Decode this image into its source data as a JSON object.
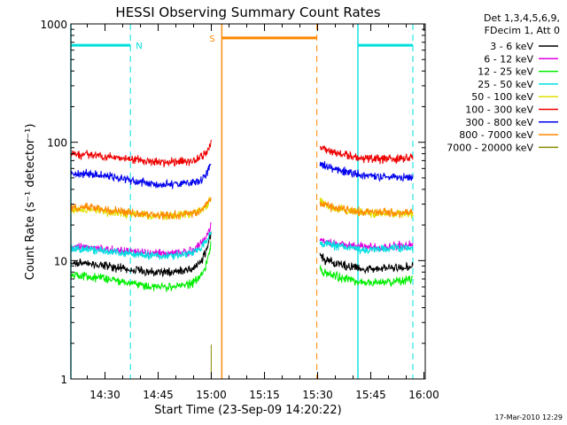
{
  "chart_data": {
    "type": "line",
    "title": "HESSI Observing Summary Count Rates",
    "xlabel": "Start Time (23-Sep-09 14:20:22)",
    "ylabel": "Count Rate (s⁻¹ detector⁻¹)",
    "yscale": "log",
    "ylim": [
      1,
      1000
    ],
    "xlim_minutes": [
      0,
      100
    ],
    "x_ticks": [
      "14:30",
      "14:45",
      "15:00",
      "15:15",
      "15:30",
      "15:45",
      "16:00"
    ],
    "x_tick_minutes": [
      9.63,
      24.63,
      39.63,
      54.63,
      69.63,
      84.63,
      99.63
    ],
    "y_ticks": [
      "1",
      "10",
      "100",
      "1000"
    ],
    "y_tick_values": [
      1,
      10,
      100,
      1000
    ],
    "legend_header": [
      "Det 1,3,4,5,6,9,",
      "FDecim 1, Att 0"
    ],
    "legend_position": "right",
    "timestamp": "17-Mar-2010 12:29",
    "series": [
      {
        "name": "3 - 6 keV",
        "color": "#000000",
        "segments": [
          {
            "x": [
              0,
              5,
              10,
              16,
              22,
              28,
              34,
              37,
              38.5,
              39.6
            ],
            "y": [
              9.5,
              9.5,
              9,
              8.5,
              8,
              8,
              8.5,
              10,
              13,
              17
            ]
          },
          {
            "x": [
              70.3,
              71,
              74,
              78,
              82,
              88,
              94,
              96.5
            ],
            "y": [
              11.5,
              10.5,
              9.5,
              9,
              8.5,
              8.5,
              8.8,
              9
            ]
          }
        ]
      },
      {
        "name": "6 - 12 keV",
        "color": "#e000e0",
        "segments": [
          {
            "x": [
              0,
              5,
              10,
              16,
              22,
              28,
              34,
              37,
              38.5,
              39.6
            ],
            "y": [
              13,
              13,
              12.5,
              12,
              11.5,
              11.5,
              12,
              14,
              17,
              20
            ]
          },
          {
            "x": [
              70.3,
              71,
              74,
              78,
              82,
              88,
              94,
              96.5
            ],
            "y": [
              15.5,
              15,
              14,
              13.5,
              13,
              13,
              13.5,
              14
            ]
          }
        ]
      },
      {
        "name": "12 - 25 keV",
        "color": "#00ee00",
        "segments": [
          {
            "x": [
              0,
              5,
              10,
              16,
              22,
              28,
              34,
              37,
              38.5,
              39.6
            ],
            "y": [
              7.5,
              7.3,
              7,
              6.5,
              6,
              6,
              6.3,
              7.5,
              10,
              14
            ]
          },
          {
            "x": [
              70.3,
              71,
              74,
              78,
              82,
              88,
              94,
              96.5
            ],
            "y": [
              8.5,
              8,
              7.5,
              7,
              6.5,
              6.5,
              6.8,
              7
            ]
          }
        ]
      },
      {
        "name": "25 - 50 keV",
        "color": "#00e0e0",
        "segments": [
          {
            "x": [
              0,
              5,
              10,
              16,
              22,
              28,
              34,
              37,
              38.5,
              39.6
            ],
            "y": [
              12.5,
              12.5,
              12,
              11.5,
              11,
              11,
              11.5,
              13,
              15,
              18
            ]
          },
          {
            "x": [
              70.3,
              71,
              74,
              78,
              82,
              88,
              94,
              96.5
            ],
            "y": [
              14.5,
              14,
              13.5,
              13,
              12.5,
              12.5,
              12.8,
              13
            ]
          }
        ]
      },
      {
        "name": "50 - 100 keV",
        "color": "#e0e000",
        "segments": [
          {
            "x": [
              0,
              5,
              10,
              16,
              22,
              28,
              34,
              37,
              38.5,
              39.6
            ],
            "y": [
              27,
              27,
              26,
              25,
              24,
              24,
              25,
              27,
              30,
              33
            ]
          },
          {
            "x": [
              70.3,
              71,
              74,
              78,
              82,
              88,
              94,
              96.5
            ],
            "y": [
              32,
              31,
              28,
              26.5,
              25.5,
              25,
              25,
              25
            ]
          }
        ]
      },
      {
        "name": "100 - 300 keV",
        "color": "#ee0000",
        "segments": [
          {
            "x": [
              0,
              5,
              10,
              16,
              22,
              28,
              34,
              37,
              38.5,
              39.6
            ],
            "y": [
              78,
              78,
              76,
              72,
              69,
              68,
              70,
              76,
              85,
              100
            ]
          },
          {
            "x": [
              70.3,
              71,
              74,
              78,
              82,
              88,
              94,
              96.5
            ],
            "y": [
              90,
              88,
              82,
              77,
              73,
              72,
              73,
              74
            ]
          }
        ]
      },
      {
        "name": "300 - 800 keV",
        "color": "#0000ee",
        "segments": [
          {
            "x": [
              0,
              5,
              10,
              16,
              22,
              28,
              34,
              37,
              38.5,
              39.6
            ],
            "y": [
              55,
              54,
              52,
              48,
              45,
              44,
              45,
              48,
              55,
              68
            ]
          },
          {
            "x": [
              70.3,
              71,
              74,
              78,
              82,
              88,
              94,
              96.5
            ],
            "y": [
              65,
              64,
              60,
              56,
              53,
              51,
              51,
              51
            ]
          }
        ]
      },
      {
        "name": "800 - 7000 keV",
        "color": "#ff8800",
        "segments": [
          {
            "x": [
              0,
              5,
              10,
              16,
              22,
              28,
              34,
              37,
              38.5,
              39.6
            ],
            "y": [
              28,
              28,
              27,
              25.5,
              24.5,
              24,
              25,
              27,
              30,
              34
            ]
          },
          {
            "x": [
              70.3,
              71,
              74,
              78,
              82,
              88,
              94,
              96.5
            ],
            "y": [
              31,
              30,
              28,
              27,
              26,
              25.5,
              25.5,
              25.5
            ]
          }
        ]
      },
      {
        "name": "7000 - 20000 keV",
        "color": "#8a8a00",
        "segments": [
          {
            "x": [
              39.6,
              39.6
            ],
            "y": [
              1,
              1.95
            ]
          }
        ]
      }
    ],
    "flag_lines": [
      {
        "label": "N",
        "color": "#00e0e0",
        "y": 660,
        "segments": [
          [
            0,
            16.8
          ],
          [
            81,
            96.5
          ]
        ],
        "solid_verticals": [
          0,
          81
        ],
        "dashed_verticals": [
          16.8,
          96.5
        ]
      },
      {
        "label": "S",
        "color": "#ff8800",
        "y": 760,
        "segments": [
          [
            42.6,
            69.4
          ]
        ],
        "solid_verticals": [
          42.6
        ],
        "dashed_verticals": [
          69.4
        ]
      }
    ],
    "grid": false
  }
}
